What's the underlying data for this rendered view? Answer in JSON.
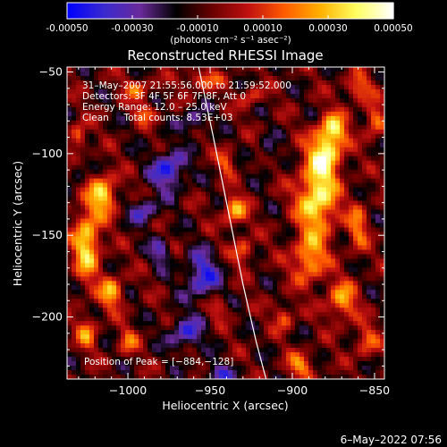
{
  "colorbar": {
    "ticks": [
      "-0.00050",
      "-0.00030",
      "-0.00010",
      "0.00010",
      "0.00030",
      "0.00050"
    ],
    "tick_values": [
      -0.0005,
      -0.0003,
      -0.0001,
      0.0001,
      0.0003,
      0.0005
    ],
    "range": [
      -0.0005,
      0.0005
    ],
    "units_label": "(photons cm⁻² s⁻¹ asec⁻²)",
    "colormap": [
      "#0000ff",
      "#3a2ad0",
      "#6a2a9a",
      "#000000",
      "#6a0000",
      "#c01010",
      "#ff5a00",
      "#ffb000",
      "#ffff60",
      "#ffffff"
    ]
  },
  "chart_data": {
    "type": "heatmap",
    "title": "Reconstructed RHESSI Image",
    "xlabel": "Heliocentric X (arcsec)",
    "ylabel": "Heliocentric Y (arcsec)",
    "xlim": [
      -1037,
      -844
    ],
    "ylim": [
      -238,
      -47
    ],
    "x_ticks": [
      -1000,
      -950,
      -900,
      -850
    ],
    "x_tick_labels": [
      "−1000",
      "−950",
      "−900",
      "−850"
    ],
    "y_ticks": [
      -50,
      -100,
      -150,
      -200
    ],
    "y_tick_labels": [
      "−50",
      "−100",
      "−150",
      "−200"
    ],
    "limb_curve": {
      "x": [
        -957,
        -948,
        -938,
        -930,
        -922,
        -916
      ],
      "y": [
        -47,
        -90,
        -140,
        -180,
        -215,
        -238
      ]
    },
    "peak": {
      "x": -884,
      "y": -128
    }
  },
  "annotations": [
    "31–May–2007 21:55:56.000 to 21:59:52.000",
    "Detectors: 3F 4F 5F 6F 7F 8F, Att 0",
    "Energy Range: 12.0 – 25.0 keV",
    "Clean     Total counts: 8.53E+03"
  ],
  "peak_text": "Position of Peak = [−884,−128]",
  "footer_date": "6–May–2022 07:56"
}
